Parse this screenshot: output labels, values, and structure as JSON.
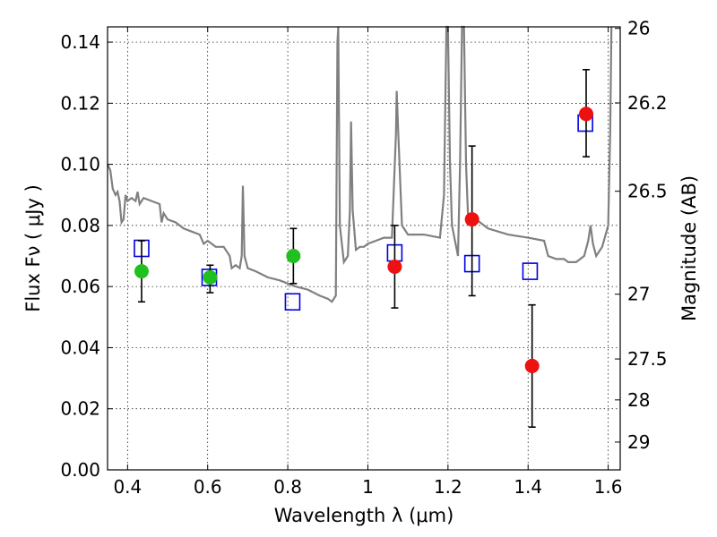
{
  "chart_data": {
    "type": "scatter",
    "xlabel": "Wavelength  λ (μm)",
    "ylabel": "Flux  Fν  ( μJy )",
    "y2label": "Magnitude (AB)",
    "xlim": [
      0.35,
      1.63
    ],
    "ylim": [
      0.0,
      0.145
    ],
    "grid": true,
    "x_ticks": [
      0.4,
      0.6,
      0.8,
      1.0,
      1.2,
      1.4,
      1.6
    ],
    "x_tick_labels": [
      "0.4",
      "0.6",
      "0.8",
      "1",
      "1.2",
      "1.4",
      "1.6"
    ],
    "y_ticks": [
      0.0,
      0.02,
      0.04,
      0.06,
      0.08,
      0.1,
      0.12,
      0.14
    ],
    "y_tick_labels": [
      "0.00",
      "0.02",
      "0.04",
      "0.06",
      "0.08",
      "0.10",
      "0.12",
      "0.14"
    ],
    "y2_ticks": [
      {
        "label": "26",
        "flux": 0.1445
      },
      {
        "label": "26.2",
        "flux": 0.1201
      },
      {
        "label": "26.5",
        "flux": 0.0912
      },
      {
        "label": "27",
        "flux": 0.0575
      },
      {
        "label": "27.5",
        "flux": 0.0363
      },
      {
        "label": "28",
        "flux": 0.0229
      },
      {
        "label": "29",
        "flux": 0.0091
      }
    ],
    "colors": {
      "sed": "#808080",
      "green_points": "#1fc01f",
      "red_points": "#ee1111",
      "model_boxes": "#0000dd",
      "error_bars": "#000000"
    },
    "sed_model": [
      [
        0.35,
        0.1
      ],
      [
        0.357,
        0.098
      ],
      [
        0.363,
        0.092
      ],
      [
        0.37,
        0.09
      ],
      [
        0.375,
        0.091
      ],
      [
        0.38,
        0.088
      ],
      [
        0.385,
        0.081
      ],
      [
        0.39,
        0.082
      ],
      [
        0.395,
        0.09
      ],
      [
        0.4,
        0.088
      ],
      [
        0.41,
        0.089
      ],
      [
        0.42,
        0.088
      ],
      [
        0.425,
        0.091
      ],
      [
        0.43,
        0.087
      ],
      [
        0.44,
        0.089
      ],
      [
        0.46,
        0.088
      ],
      [
        0.48,
        0.087
      ],
      [
        0.485,
        0.081
      ],
      [
        0.49,
        0.084
      ],
      [
        0.5,
        0.082
      ],
      [
        0.52,
        0.081
      ],
      [
        0.54,
        0.079
      ],
      [
        0.56,
        0.078
      ],
      [
        0.58,
        0.077
      ],
      [
        0.59,
        0.074
      ],
      [
        0.6,
        0.075
      ],
      [
        0.62,
        0.073
      ],
      [
        0.64,
        0.073
      ],
      [
        0.655,
        0.07
      ],
      [
        0.66,
        0.066
      ],
      [
        0.67,
        0.067
      ],
      [
        0.68,
        0.066
      ],
      [
        0.685,
        0.07
      ],
      [
        0.688,
        0.093
      ],
      [
        0.692,
        0.07
      ],
      [
        0.7,
        0.066
      ],
      [
        0.72,
        0.065
      ],
      [
        0.75,
        0.063
      ],
      [
        0.78,
        0.062
      ],
      [
        0.8,
        0.061
      ],
      [
        0.82,
        0.06
      ],
      [
        0.85,
        0.059
      ],
      [
        0.88,
        0.057
      ],
      [
        0.9,
        0.056
      ],
      [
        0.91,
        0.055
      ],
      [
        0.92,
        0.057
      ],
      [
        0.924,
        0.14
      ],
      [
        0.926,
        0.145
      ],
      [
        0.93,
        0.08
      ],
      [
        0.94,
        0.068
      ],
      [
        0.95,
        0.07
      ],
      [
        0.955,
        0.085
      ],
      [
        0.958,
        0.114
      ],
      [
        0.962,
        0.085
      ],
      [
        0.97,
        0.072
      ],
      [
        0.98,
        0.073
      ],
      [
        0.99,
        0.073
      ],
      [
        1.0,
        0.074
      ],
      [
        1.02,
        0.075
      ],
      [
        1.04,
        0.076
      ],
      [
        1.06,
        0.076
      ],
      [
        1.07,
        0.11
      ],
      [
        1.072,
        0.124
      ],
      [
        1.076,
        0.11
      ],
      [
        1.085,
        0.08
      ],
      [
        1.1,
        0.077
      ],
      [
        1.14,
        0.077
      ],
      [
        1.18,
        0.076
      ],
      [
        1.19,
        0.09
      ],
      [
        1.196,
        0.145
      ],
      [
        1.2,
        0.145
      ],
      [
        1.205,
        0.1
      ],
      [
        1.21,
        0.08
      ],
      [
        1.225,
        0.07
      ],
      [
        1.23,
        0.1
      ],
      [
        1.235,
        0.145
      ],
      [
        1.24,
        0.145
      ],
      [
        1.245,
        0.1
      ],
      [
        1.25,
        0.083
      ],
      [
        1.27,
        0.082
      ],
      [
        1.29,
        0.08
      ],
      [
        1.3,
        0.079
      ],
      [
        1.35,
        0.077
      ],
      [
        1.4,
        0.076
      ],
      [
        1.44,
        0.075
      ],
      [
        1.45,
        0.07
      ],
      [
        1.47,
        0.069
      ],
      [
        1.49,
        0.069
      ],
      [
        1.5,
        0.068
      ],
      [
        1.52,
        0.068
      ],
      [
        1.54,
        0.07
      ],
      [
        1.55,
        0.075
      ],
      [
        1.556,
        0.08
      ],
      [
        1.562,
        0.074
      ],
      [
        1.57,
        0.07
      ],
      [
        1.585,
        0.073
      ],
      [
        1.6,
        0.08
      ],
      [
        1.605,
        0.11
      ],
      [
        1.608,
        0.145
      ]
    ],
    "observed_green": [
      {
        "x": 0.435,
        "y": 0.065,
        "yerr": [
          0.055,
          0.075
        ]
      },
      {
        "x": 0.606,
        "y": 0.063,
        "yerr": [
          0.058,
          0.067
        ]
      },
      {
        "x": 0.814,
        "y": 0.07,
        "yerr": [
          0.061,
          0.079
        ]
      }
    ],
    "observed_red": [
      {
        "x": 1.067,
        "y": 0.0665,
        "yerr": [
          0.053,
          0.08
        ]
      },
      {
        "x": 1.26,
        "y": 0.082,
        "yerr": [
          0.057,
          0.106
        ]
      },
      {
        "x": 1.41,
        "y": 0.034,
        "yerr": [
          0.014,
          0.054
        ]
      },
      {
        "x": 1.545,
        "y": 0.1165,
        "yerr": [
          0.1025,
          0.131
        ]
      }
    ],
    "model_photometry": [
      {
        "x": 0.435,
        "y": 0.0725
      },
      {
        "x": 0.604,
        "y": 0.063
      },
      {
        "x": 0.812,
        "y": 0.055
      },
      {
        "x": 1.067,
        "y": 0.071
      },
      {
        "x": 1.26,
        "y": 0.0675
      },
      {
        "x": 1.405,
        "y": 0.065
      },
      {
        "x": 1.543,
        "y": 0.1135
      }
    ]
  }
}
